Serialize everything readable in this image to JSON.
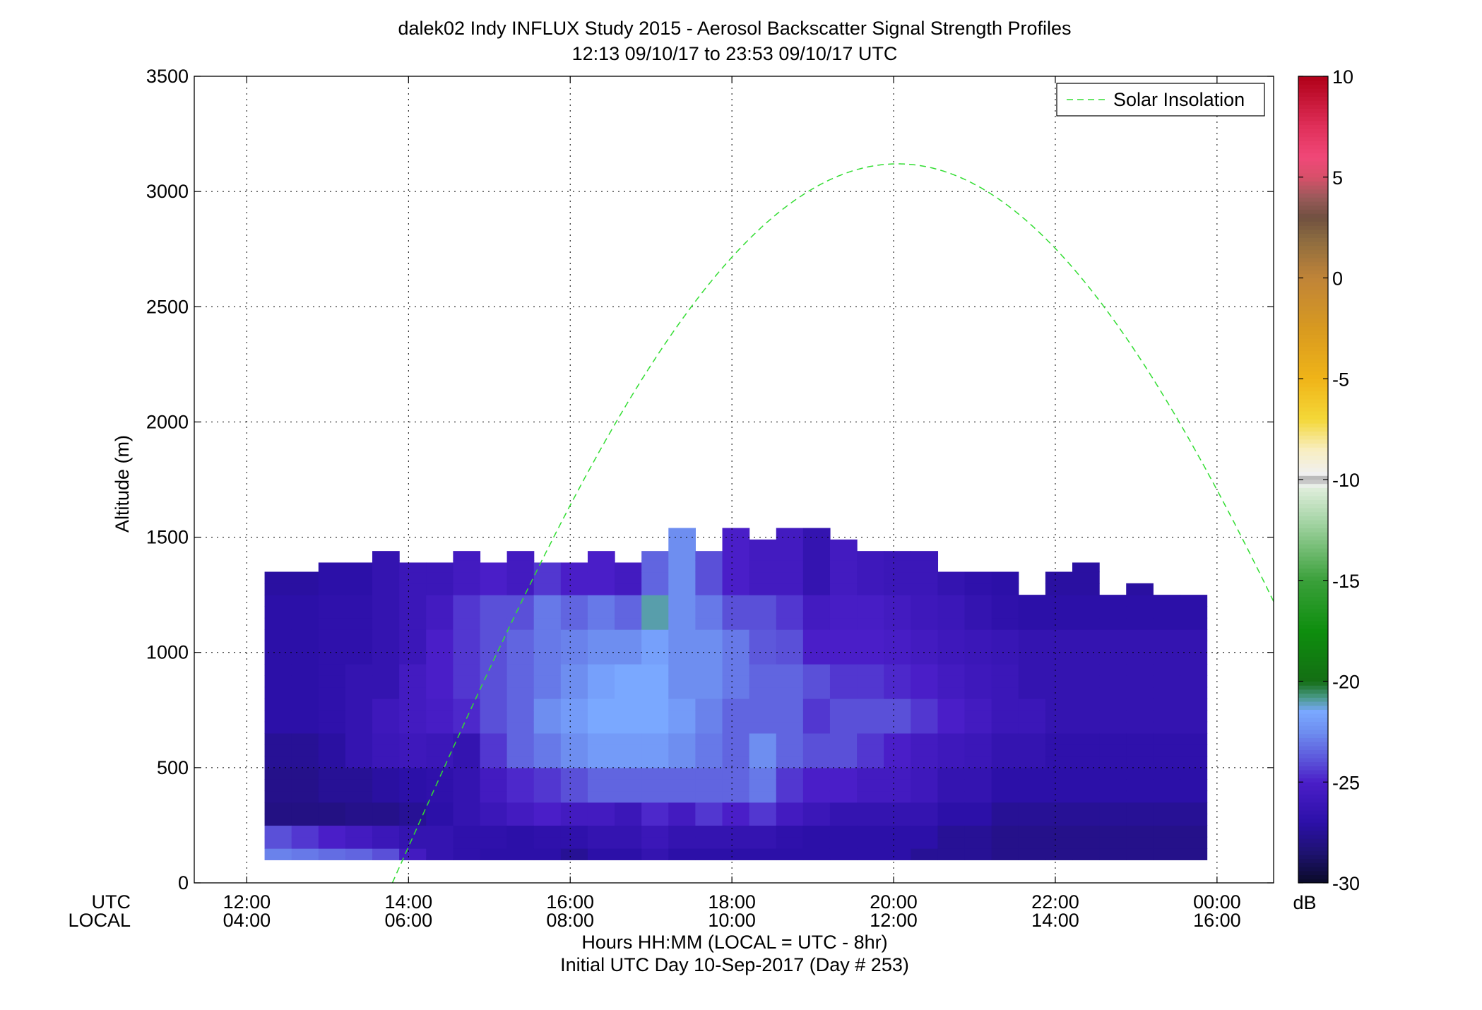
{
  "chart_data": {
    "type": "heatmap",
    "title_line1": "dalek02 Indy INFLUX Study 2015 - Aerosol Backscatter Signal Strength Profiles",
    "title_line2": "12:13 09/10/17 to 23:53 09/10/17  UTC",
    "ylabel": "Altitude (m)",
    "xlabel_line1": "Hours HH:MM  (LOCAL = UTC - 8hr)",
    "xlabel_line2": "Initial UTC Day 10-Sep-2017 (Day # 253)",
    "x_row_label_utc": "UTC",
    "x_row_label_local": "LOCAL",
    "xlim_hours": [
      11.35,
      24.7
    ],
    "ylim": [
      0,
      3500
    ],
    "grid": true,
    "y_ticks": [
      0,
      500,
      1000,
      1500,
      2000,
      2500,
      3000,
      3500
    ],
    "x_ticks_hours": [
      12,
      14,
      16,
      18,
      20,
      22,
      24
    ],
    "x_tick_labels_utc": [
      "12:00",
      "14:00",
      "16:00",
      "18:00",
      "20:00",
      "22:00",
      "00:00"
    ],
    "x_tick_labels_local": [
      "04:00",
      "06:00",
      "08:00",
      "10:00",
      "12:00",
      "14:00",
      "16:00"
    ],
    "legend": {
      "label": "Solar Insolation",
      "placement": "top-right",
      "color": "#33dd33"
    },
    "colorbar": {
      "unit": "dB",
      "range": [
        -30,
        10
      ],
      "ticks": [
        10,
        5,
        0,
        -5,
        -10,
        -15,
        -20,
        -25,
        -30
      ],
      "tick_labels": [
        "10",
        "5",
        "0",
        "-5",
        "-10",
        "-15",
        "-20",
        "-25",
        "-30"
      ],
      "stops": [
        [
          -30,
          "#0a0a28"
        ],
        [
          -28.5,
          "#1e1270"
        ],
        [
          -27,
          "#2c10a8"
        ],
        [
          -25,
          "#4a1ec8"
        ],
        [
          -24,
          "#5a50d8"
        ],
        [
          -22.5,
          "#6e8ef0"
        ],
        [
          -21.5,
          "#7aa8ff"
        ],
        [
          -20.8,
          "#4a9a8a"
        ],
        [
          -20,
          "#146e14"
        ],
        [
          -17.5,
          "#0e8e0e"
        ],
        [
          -15,
          "#3aa03a"
        ],
        [
          -12,
          "#a8d6a8"
        ],
        [
          -10.5,
          "#dcecd8"
        ],
        [
          -10.2,
          "#f0f0f0"
        ],
        [
          -10,
          "#a0a0a0"
        ],
        [
          -9.7,
          "#f0f0f0"
        ],
        [
          -8.5,
          "#f8eec0"
        ],
        [
          -7,
          "#f4d838"
        ],
        [
          -5,
          "#f0b418"
        ],
        [
          -2.5,
          "#d89a20"
        ],
        [
          0,
          "#c08438"
        ],
        [
          2,
          "#8a6a40"
        ],
        [
          3,
          "#705040"
        ],
        [
          4,
          "#9a5a5a"
        ],
        [
          5,
          "#d8506a"
        ],
        [
          6,
          "#f04878"
        ],
        [
          7.5,
          "#e0305a"
        ],
        [
          10,
          "#b00018"
        ]
      ]
    },
    "data_time_start_hours": 12.22,
    "data_time_step_hours": 0.333,
    "data_alt_start": 100,
    "data_alt_step": 50,
    "column_top_altitude": [
      1350,
      1350,
      1390,
      1390,
      1440,
      1390,
      1390,
      1440,
      1390,
      1440,
      1390,
      1390,
      1440,
      1390,
      1440,
      1540,
      1440,
      1540,
      1490,
      1540,
      1540,
      1490,
      1440,
      1440,
      1440,
      1350,
      1350,
      1350,
      1250,
      1350,
      1390,
      1250,
      1300,
      1250,
      1250
    ],
    "profile_bands": [
      {
        "alt_lo": 100,
        "alt_hi": 150,
        "values": [
          -22.8,
          -23.0,
          -23.3,
          -23.5,
          -24.0,
          -25.5,
          -26.5,
          -26.8,
          -27.0,
          -27.0,
          -27.0,
          -27.5,
          -27.0,
          -27.0,
          -26.5,
          -27.0,
          -27.0,
          -27.0,
          -27.0,
          -27.0,
          -27.0,
          -27.0,
          -27.0,
          -27.0,
          -27.5,
          -27.5,
          -27.5,
          -27.8,
          -27.8,
          -27.8,
          -27.8,
          -27.8,
          -27.8,
          -27.8,
          -27.8
        ]
      },
      {
        "alt_lo": 150,
        "alt_hi": 250,
        "values": [
          -24.0,
          -24.5,
          -25.0,
          -25.5,
          -26.0,
          -26.5,
          -26.5,
          -26.8,
          -26.8,
          -27.0,
          -26.8,
          -26.8,
          -26.5,
          -26.5,
          -26.0,
          -26.5,
          -26.5,
          -26.5,
          -26.5,
          -26.8,
          -27.0,
          -27.0,
          -27.0,
          -27.0,
          -27.0,
          -27.5,
          -27.5,
          -27.8,
          -27.8,
          -27.8,
          -27.8,
          -27.8,
          -27.8,
          -27.8,
          -27.8
        ]
      },
      {
        "alt_lo": 250,
        "alt_hi": 350,
        "values": [
          -28.0,
          -28.0,
          -28.0,
          -27.8,
          -27.8,
          -27.5,
          -27.0,
          -26.5,
          -26.0,
          -25.5,
          -25.0,
          -25.5,
          -25.5,
          -26.0,
          -24.8,
          -25.5,
          -24.5,
          -25.0,
          -24.5,
          -25.5,
          -26.0,
          -26.5,
          -26.5,
          -26.5,
          -26.5,
          -27.0,
          -27.0,
          -27.5,
          -27.5,
          -27.5,
          -27.5,
          -27.5,
          -27.5,
          -27.5,
          -27.5
        ]
      },
      {
        "alt_lo": 350,
        "alt_hi": 500,
        "values": [
          -27.8,
          -27.8,
          -27.5,
          -27.5,
          -27.2,
          -27.0,
          -26.8,
          -26.5,
          -25.5,
          -24.8,
          -24.5,
          -24.0,
          -23.5,
          -23.5,
          -23.5,
          -23.5,
          -23.5,
          -23.5,
          -23.0,
          -24.5,
          -25.0,
          -25.0,
          -25.5,
          -25.5,
          -25.8,
          -26.5,
          -26.5,
          -27.0,
          -27.0,
          -27.0,
          -27.0,
          -27.0,
          -27.0,
          -27.0,
          -27.0
        ]
      },
      {
        "alt_lo": 500,
        "alt_hi": 650,
        "values": [
          -27.5,
          -27.5,
          -27.2,
          -26.5,
          -26.0,
          -25.8,
          -26.0,
          -26.5,
          -24.5,
          -23.5,
          -23.0,
          -22.5,
          -22.0,
          -22.0,
          -22.0,
          -22.5,
          -23.0,
          -23.5,
          -22.5,
          -23.5,
          -24.0,
          -24.0,
          -24.5,
          -25.0,
          -25.5,
          -25.8,
          -26.0,
          -26.5,
          -26.5,
          -26.8,
          -26.8,
          -26.8,
          -26.8,
          -26.8,
          -26.8
        ]
      },
      {
        "alt_lo": 650,
        "alt_hi": 800,
        "values": [
          -27.0,
          -27.0,
          -26.8,
          -26.5,
          -25.8,
          -25.5,
          -25.2,
          -24.8,
          -24.0,
          -23.5,
          -22.5,
          -22.0,
          -21.5,
          -21.5,
          -21.5,
          -22.0,
          -22.8,
          -23.5,
          -23.5,
          -23.5,
          -24.5,
          -24.0,
          -24.0,
          -24.0,
          -24.5,
          -25.0,
          -25.5,
          -26.0,
          -26.0,
          -26.5,
          -26.5,
          -26.5,
          -26.5,
          -26.5,
          -26.5
        ]
      },
      {
        "alt_lo": 800,
        "alt_hi": 950,
        "values": [
          -27.0,
          -27.0,
          -26.8,
          -26.5,
          -26.5,
          -25.5,
          -25.0,
          -24.5,
          -24.0,
          -23.5,
          -23.0,
          -22.5,
          -21.8,
          -21.5,
          -21.5,
          -22.5,
          -22.5,
          -23.0,
          -23.5,
          -23.5,
          -24.0,
          -24.5,
          -24.5,
          -24.8,
          -25.0,
          -25.5,
          -25.8,
          -26.0,
          -26.5,
          -26.5,
          -26.5,
          -26.5,
          -26.5,
          -26.5,
          -26.5
        ]
      },
      {
        "alt_lo": 950,
        "alt_hi": 1100,
        "values": [
          -27.0,
          -27.0,
          -26.8,
          -26.8,
          -26.5,
          -26.0,
          -25.0,
          -24.5,
          -24.0,
          -23.5,
          -23.0,
          -22.8,
          -22.5,
          -22.5,
          -21.8,
          -22.5,
          -22.5,
          -23.0,
          -23.8,
          -24.0,
          -25.0,
          -25.0,
          -25.0,
          -25.2,
          -25.5,
          -25.8,
          -26.0,
          -26.2,
          -26.5,
          -26.5,
          -26.5,
          -26.5,
          -26.5,
          -26.5,
          -26.5
        ]
      },
      {
        "alt_lo": 1100,
        "alt_hi": 1250,
        "values": [
          -27.0,
          -27.0,
          -26.8,
          -26.8,
          -26.5,
          -26.0,
          -25.5,
          -24.5,
          -24.0,
          -24.0,
          -23.0,
          -23.5,
          -23.0,
          -23.5,
          -21.0,
          -22.5,
          -23.0,
          -24.0,
          -24.0,
          -24.5,
          -25.5,
          -25.2,
          -25.2,
          -25.5,
          -25.8,
          -26.0,
          -26.5,
          -26.8,
          -27.0,
          -27.0,
          -27.0,
          -27.0,
          -27.0,
          -27.0,
          -27.0
        ]
      },
      {
        "alt_lo": 1250,
        "alt_hi": 1600,
        "values": [
          -27.2,
          -27.2,
          -27.0,
          -27.0,
          -26.5,
          -26.0,
          -26.0,
          -25.5,
          -25.0,
          -25.5,
          -24.5,
          -25.0,
          -25.0,
          -25.5,
          -23.5,
          -22.5,
          -24.0,
          -25.0,
          -25.5,
          -25.5,
          -26.5,
          -25.5,
          -25.8,
          -26.0,
          -26.0,
          -26.5,
          -26.8,
          -27.0,
          -27.2,
          -27.2,
          -27.2,
          -27.2,
          -27.2,
          -27.2,
          -27.2
        ]
      }
    ],
    "solar_insolation_series": {
      "name": "Solar Insolation",
      "model": "peak altitude 3120 at 20:03 UTC, zero crossing 13:48 UTC",
      "peak_value": 3120,
      "peak_time_hours": 20.05,
      "zero_time_hours": 13.8
    }
  }
}
